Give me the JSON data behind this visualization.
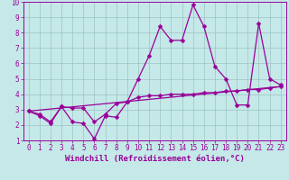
{
  "xlabel": "Windchill (Refroidissement éolien,°C)",
  "xlim": [
    -0.5,
    23.5
  ],
  "ylim": [
    1,
    10
  ],
  "xticks": [
    0,
    1,
    2,
    3,
    4,
    5,
    6,
    7,
    8,
    9,
    10,
    11,
    12,
    13,
    14,
    15,
    16,
    17,
    18,
    19,
    20,
    21,
    22,
    23
  ],
  "yticks": [
    1,
    2,
    3,
    4,
    5,
    6,
    7,
    8,
    9,
    10
  ],
  "bg_color": "#c5e8e8",
  "line_color": "#990099",
  "grid_color": "#9cc4c4",
  "series1_x": [
    0,
    1,
    2,
    3,
    4,
    5,
    6,
    7,
    8,
    9,
    10,
    11,
    12,
    13,
    14,
    15,
    16,
    17,
    18,
    19,
    20,
    21,
    22,
    23
  ],
  "series1_y": [
    2.9,
    2.6,
    2.1,
    3.2,
    2.2,
    2.1,
    1.1,
    2.6,
    2.5,
    3.5,
    5.0,
    6.5,
    8.4,
    7.5,
    7.5,
    9.8,
    8.4,
    5.8,
    5.0,
    3.3,
    3.3,
    8.6,
    5.0,
    4.6
  ],
  "series2_x": [
    0,
    1,
    2,
    3,
    4,
    5,
    6,
    7,
    8,
    9,
    10,
    11,
    12,
    13,
    14,
    15,
    16,
    17,
    18,
    19,
    20,
    21,
    22,
    23
  ],
  "series2_y": [
    2.9,
    2.7,
    2.2,
    3.2,
    3.1,
    3.1,
    2.2,
    2.7,
    3.4,
    3.5,
    3.8,
    3.9,
    3.9,
    4.0,
    4.0,
    4.0,
    4.1,
    4.1,
    4.2,
    4.2,
    4.3,
    4.3,
    4.4,
    4.5
  ],
  "series3_x": [
    0,
    23
  ],
  "series3_y": [
    2.9,
    4.5
  ],
  "marker": "D",
  "markersize": 2.5,
  "linewidth": 0.9,
  "xlabel_fontsize": 6.5,
  "tick_fontsize": 5.5
}
